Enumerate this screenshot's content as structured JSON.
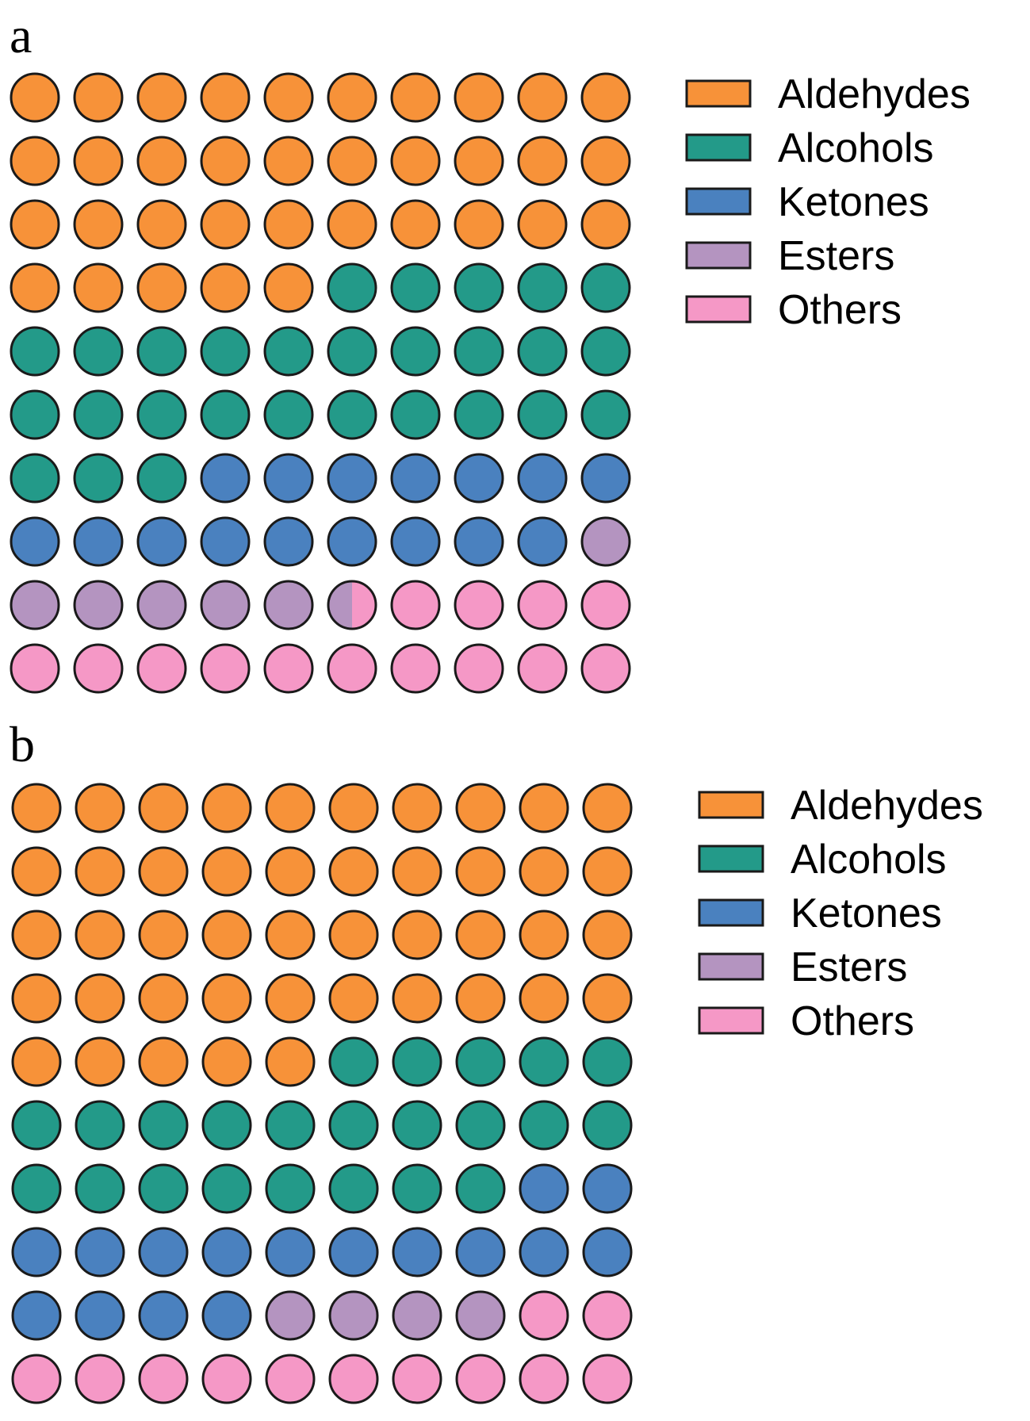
{
  "colors": {
    "Aldehydes": "#F79239",
    "Alcohols": "#239A89",
    "Ketones": "#4A81BF",
    "Esters": "#B494C0",
    "Others": "#F598C6"
  },
  "chart_data": [
    {
      "type": "waffle",
      "panel_label": "a",
      "grid": [
        10,
        10
      ],
      "fill_order": "row-major, left-to-right, top-to-bottom",
      "categories": [
        "Aldehydes",
        "Alcohols",
        "Ketones",
        "Esters",
        "Others"
      ],
      "values": [
        35,
        28,
        16,
        6.5,
        14.5
      ],
      "legend": [
        "Aldehydes",
        "Alcohols",
        "Ketones",
        "Esters",
        "Others"
      ],
      "legend_position": "top-right"
    },
    {
      "type": "waffle",
      "panel_label": "b",
      "grid": [
        10,
        10
      ],
      "fill_order": "row-major, left-to-right, top-to-bottom",
      "categories": [
        "Aldehydes",
        "Alcohols",
        "Ketones",
        "Esters",
        "Others"
      ],
      "values": [
        45,
        23,
        16,
        4,
        12
      ],
      "legend": [
        "Aldehydes",
        "Alcohols",
        "Ketones",
        "Esters",
        "Others"
      ],
      "legend_position": "top-right"
    }
  ]
}
